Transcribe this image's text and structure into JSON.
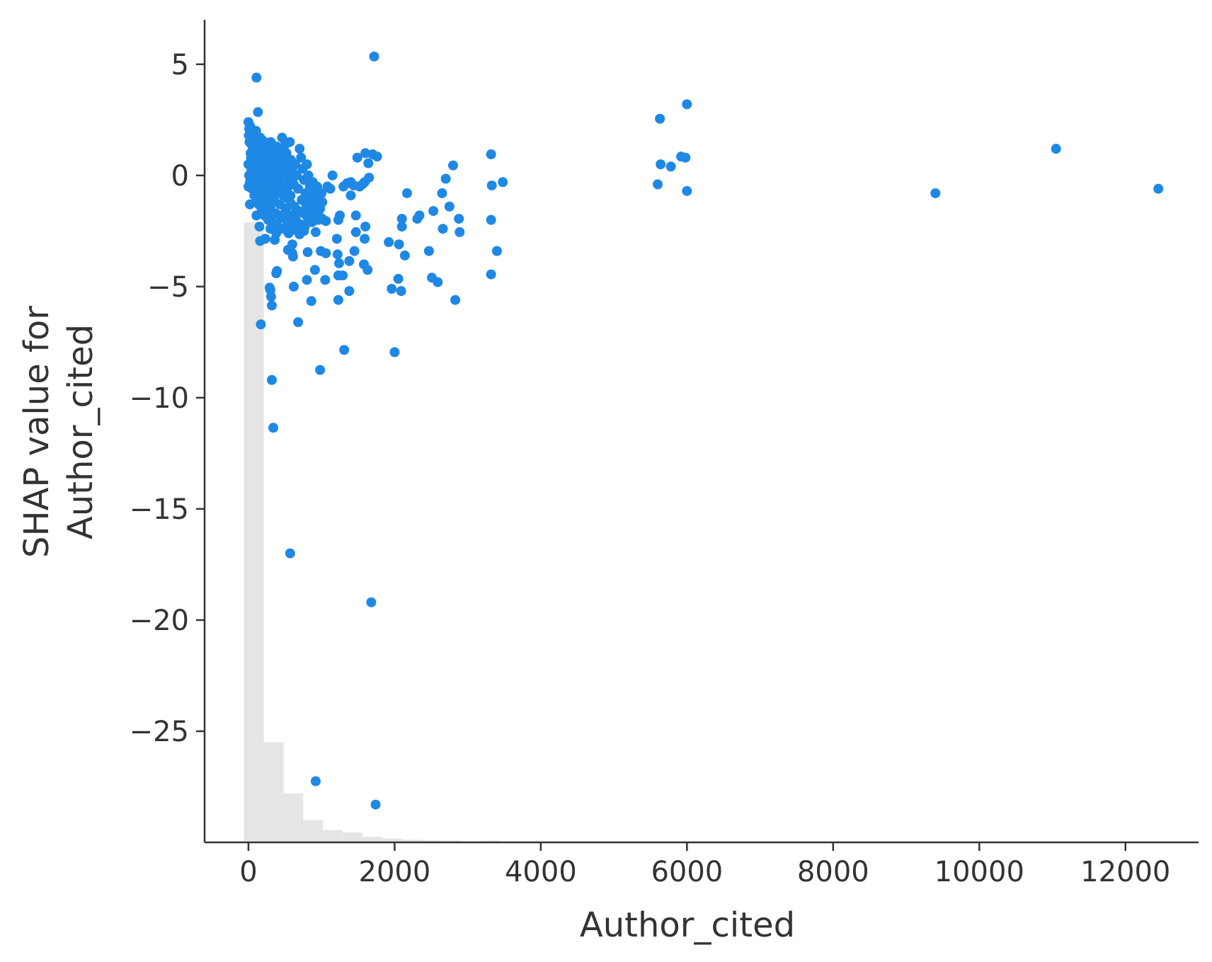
{
  "chart_data": {
    "type": "scatter",
    "xlabel": "Author_cited",
    "ylabel_lines": [
      "SHAP value for",
      "Author_cited"
    ],
    "xlim": [
      -600,
      13000
    ],
    "ylim": [
      -30,
      7
    ],
    "xticks": [
      0,
      2000,
      4000,
      6000,
      8000,
      10000,
      12000
    ],
    "xtick_labels": [
      "0",
      "2000",
      "4000",
      "6000",
      "8000",
      "10000",
      "12000"
    ],
    "yticks": [
      5,
      0,
      -5,
      -10,
      -15,
      -20,
      -25
    ],
    "ytick_labels": [
      "5",
      "0",
      "−5",
      "−10",
      "−15",
      "−20",
      "−25"
    ],
    "grid": false,
    "colors": {
      "points": "#1e88e5",
      "histogram": "#e5e5e5",
      "axes": "#333333"
    },
    "histogram": {
      "bin_width": 270,
      "bins": [
        {
          "x0": -60,
          "y_top": -2.1
        },
        {
          "x0": 210,
          "y_top": -25.5
        },
        {
          "x0": 480,
          "y_top": -27.8
        },
        {
          "x0": 750,
          "y_top": -29.0
        },
        {
          "x0": 1020,
          "y_top": -29.45
        },
        {
          "x0": 1290,
          "y_top": -29.55
        },
        {
          "x0": 1560,
          "y_top": -29.75
        },
        {
          "x0": 1830,
          "y_top": -29.82
        },
        {
          "x0": 2100,
          "y_top": -29.88
        },
        {
          "x0": 2370,
          "y_top": -29.9
        },
        {
          "x0": 2640,
          "y_top": -29.92
        },
        {
          "x0": 3180,
          "y_top": -29.92
        }
      ]
    },
    "points": [
      [
        1720,
        5.35
      ],
      [
        110,
        4.4
      ],
      [
        6000,
        3.2
      ],
      [
        130,
        2.85
      ],
      [
        5630,
        2.55
      ],
      [
        11050,
        1.2
      ],
      [
        5980,
        0.8
      ],
      [
        5920,
        0.85
      ],
      [
        5780,
        0.4
      ],
      [
        5640,
        0.5
      ],
      [
        5600,
        -0.4
      ],
      [
        6000,
        -0.7
      ],
      [
        9400,
        -0.8
      ],
      [
        12450,
        -0.6
      ],
      [
        3320,
        0.95
      ],
      [
        3330,
        -0.45
      ],
      [
        3480,
        -0.3
      ],
      [
        3320,
        -2.0
      ],
      [
        3400,
        -3.4
      ],
      [
        3320,
        -4.45
      ],
      [
        2800,
        0.45
      ],
      [
        2700,
        -0.15
      ],
      [
        2650,
        -0.8
      ],
      [
        2750,
        -1.4
      ],
      [
        2880,
        -1.95
      ],
      [
        2890,
        -2.55
      ],
      [
        2660,
        -2.4
      ],
      [
        2470,
        -3.4
      ],
      [
        2510,
        -4.6
      ],
      [
        2590,
        -4.8
      ],
      [
        2830,
        -5.6
      ],
      [
        2170,
        -0.8
      ],
      [
        2100,
        -1.95
      ],
      [
        2100,
        -2.3
      ],
      [
        2340,
        -1.8
      ],
      [
        2310,
        -1.95
      ],
      [
        2530,
        -1.6
      ],
      [
        2060,
        -3.1
      ],
      [
        2140,
        -3.6
      ],
      [
        2050,
        -4.65
      ],
      [
        2090,
        -5.2
      ],
      [
        1920,
        -3.0
      ],
      [
        1960,
        -5.1
      ],
      [
        2000,
        -7.95
      ],
      [
        1600,
        1.0
      ],
      [
        1700,
        0.95
      ],
      [
        1760,
        0.85
      ],
      [
        1640,
        0.55
      ],
      [
        1650,
        -0.1
      ],
      [
        1590,
        -0.3
      ],
      [
        1490,
        0.8
      ],
      [
        1520,
        -0.5
      ],
      [
        1560,
        -0.4
      ],
      [
        1600,
        -2.3
      ],
      [
        1590,
        -2.85
      ],
      [
        1470,
        -2.55
      ],
      [
        1470,
        -1.8
      ],
      [
        1580,
        -4.0
      ],
      [
        1630,
        -4.25
      ],
      [
        1450,
        -3.4
      ],
      [
        1380,
        -3.85
      ],
      [
        1380,
        -5.2
      ],
      [
        1310,
        -7.85
      ],
      [
        1680,
        -19.2
      ],
      [
        1740,
        -28.3
      ],
      [
        920,
        -27.25
      ],
      [
        1250,
        -1.8
      ],
      [
        1230,
        -2.0
      ],
      [
        1210,
        -2.85
      ],
      [
        1220,
        -3.55
      ],
      [
        1240,
        -3.95
      ],
      [
        1230,
        -4.5
      ],
      [
        1290,
        -4.5
      ],
      [
        1230,
        -5.6
      ],
      [
        1050,
        -4.7
      ],
      [
        990,
        -3.4
      ],
      [
        1060,
        -3.5
      ],
      [
        1060,
        -2.05
      ],
      [
        920,
        -2.55
      ],
      [
        910,
        -4.25
      ],
      [
        980,
        -8.75
      ],
      [
        860,
        -5.65
      ],
      [
        800,
        -4.7
      ],
      [
        810,
        -3.45
      ],
      [
        1120,
        -0.6
      ],
      [
        1150,
        0.0
      ],
      [
        1080,
        -0.5
      ],
      [
        1300,
        -0.5
      ],
      [
        1350,
        -0.35
      ],
      [
        1400,
        -0.3
      ],
      [
        1440,
        -0.45
      ],
      [
        1400,
        -0.9
      ],
      [
        540,
        -3.35
      ],
      [
        600,
        -3.5
      ],
      [
        600,
        -3.1
      ],
      [
        610,
        -3.65
      ],
      [
        620,
        -5.0
      ],
      [
        680,
        -6.6
      ],
      [
        390,
        -4.3
      ],
      [
        380,
        -4.4
      ],
      [
        290,
        -5.05
      ],
      [
        300,
        -5.15
      ],
      [
        310,
        -5.45
      ],
      [
        320,
        -5.85
      ],
      [
        170,
        -6.7
      ],
      [
        320,
        -9.2
      ],
      [
        340,
        -11.35
      ],
      [
        570,
        -17.0
      ],
      [
        20,
        -1.3
      ],
      [
        110,
        -1.8
      ],
      [
        150,
        -2.3
      ],
      [
        160,
        -2.95
      ],
      [
        230,
        -2.85
      ],
      [
        360,
        -2.9
      ],
      [
        300,
        -2.4
      ],
      [
        380,
        -2.6
      ],
      [
        430,
        -1.8
      ],
      [
        500,
        -1.9
      ],
      [
        590,
        -2.25
      ],
      [
        700,
        -2.65
      ],
      [
        760,
        -2.5
      ],
      [
        820,
        -2.1
      ],
      [
        880,
        -1.85
      ],
      [
        950,
        -1.3
      ],
      [
        1000,
        -0.8
      ]
    ],
    "dense_cluster": [
      [
        0,
        2.4
      ],
      [
        10,
        2.1
      ],
      [
        20,
        1.9
      ],
      [
        30,
        1.6
      ],
      [
        40,
        1.4
      ],
      [
        60,
        1.2
      ],
      [
        80,
        1.8
      ],
      [
        100,
        1.5
      ],
      [
        120,
        1.1
      ],
      [
        140,
        0.9
      ],
      [
        160,
        1.7
      ],
      [
        180,
        1.3
      ],
      [
        200,
        0.8
      ],
      [
        220,
        1.5
      ],
      [
        240,
        1.0
      ],
      [
        260,
        0.6
      ],
      [
        280,
        1.3
      ],
      [
        300,
        0.9
      ],
      [
        320,
        0.4
      ],
      [
        340,
        1.1
      ],
      [
        360,
        0.7
      ],
      [
        380,
        0.2
      ],
      [
        400,
        0.9
      ],
      [
        420,
        0.5
      ],
      [
        440,
        0.0
      ],
      [
        460,
        1.7
      ],
      [
        480,
        1.2
      ],
      [
        500,
        0.6
      ],
      [
        520,
        1.0
      ],
      [
        540,
        0.4
      ],
      [
        560,
        -0.2
      ],
      [
        580,
        0.7
      ],
      [
        600,
        0.2
      ],
      [
        620,
        -0.4
      ],
      [
        640,
        0.5
      ],
      [
        660,
        0.0
      ],
      [
        680,
        -0.6
      ],
      [
        700,
        1.2
      ],
      [
        720,
        0.8
      ],
      [
        740,
        0.3
      ],
      [
        760,
        -0.2
      ],
      [
        780,
        -0.8
      ],
      [
        800,
        0.5
      ],
      [
        820,
        0.0
      ],
      [
        840,
        -0.5
      ],
      [
        860,
        -1.0
      ],
      [
        880,
        -0.3
      ],
      [
        900,
        -0.7
      ],
      [
        920,
        -1.2
      ],
      [
        940,
        -0.5
      ],
      [
        960,
        -1.0
      ],
      [
        980,
        -1.5
      ],
      [
        0,
        0.5
      ],
      [
        0,
        -0.5
      ],
      [
        10,
        0.0
      ],
      [
        20,
        -0.3
      ],
      [
        30,
        1.0
      ],
      [
        40,
        0.2
      ],
      [
        50,
        -0.6
      ],
      [
        60,
        0.6
      ],
      [
        70,
        -0.2
      ],
      [
        80,
        -0.9
      ],
      [
        90,
        0.3
      ],
      [
        100,
        -0.5
      ],
      [
        110,
        -1.0
      ],
      [
        120,
        0.0
      ],
      [
        130,
        -0.7
      ],
      [
        140,
        -1.3
      ],
      [
        150,
        0.4
      ],
      [
        160,
        -0.3
      ],
      [
        170,
        -0.9
      ],
      [
        180,
        -1.5
      ],
      [
        190,
        0.1
      ],
      [
        200,
        -0.6
      ],
      [
        210,
        -1.2
      ],
      [
        220,
        -1.8
      ],
      [
        230,
        0.3
      ],
      [
        240,
        -0.4
      ],
      [
        250,
        -1.0
      ],
      [
        260,
        -1.6
      ],
      [
        270,
        -2.0
      ],
      [
        280,
        -0.2
      ],
      [
        290,
        -0.8
      ],
      [
        300,
        -1.4
      ],
      [
        310,
        -2.0
      ],
      [
        330,
        -0.5
      ],
      [
        350,
        -1.1
      ],
      [
        370,
        -1.7
      ],
      [
        390,
        -2.2
      ],
      [
        410,
        -0.8
      ],
      [
        430,
        -1.3
      ],
      [
        450,
        -1.9
      ],
      [
        470,
        -2.4
      ],
      [
        490,
        -1.0
      ],
      [
        510,
        -1.5
      ],
      [
        530,
        -2.1
      ],
      [
        550,
        -2.6
      ],
      [
        570,
        -1.2
      ],
      [
        590,
        -1.8
      ],
      [
        610,
        -2.3
      ],
      [
        630,
        -1.4
      ],
      [
        650,
        -2.0
      ],
      [
        670,
        -2.5
      ],
      [
        690,
        -1.6
      ],
      [
        710,
        -2.2
      ],
      [
        730,
        -1.1
      ],
      [
        750,
        -1.7
      ],
      [
        770,
        -2.3
      ],
      [
        790,
        -1.3
      ],
      [
        810,
        -1.9
      ],
      [
        830,
        -0.9
      ],
      [
        850,
        -1.5
      ],
      [
        870,
        -2.1
      ],
      [
        890,
        -1.1
      ],
      [
        910,
        -1.7
      ],
      [
        930,
        -0.6
      ],
      [
        950,
        -2.0
      ],
      [
        970,
        -0.9
      ],
      [
        990,
        -1.9
      ],
      [
        1010,
        -1.2
      ],
      [
        1030,
        -2.0
      ],
      [
        5,
        1.8
      ],
      [
        15,
        1.5
      ],
      [
        25,
        2.2
      ],
      [
        35,
        0.8
      ],
      [
        45,
        1.9
      ],
      [
        55,
        1.0
      ],
      [
        65,
        1.6
      ],
      [
        75,
        0.4
      ],
      [
        85,
        1.2
      ],
      [
        95,
        0.9
      ],
      [
        105,
        2.0
      ],
      [
        115,
        0.6
      ],
      [
        125,
        1.4
      ],
      [
        135,
        0.2
      ],
      [
        145,
        1.0
      ],
      [
        155,
        -0.1
      ],
      [
        165,
        0.8
      ],
      [
        175,
        0.3
      ],
      [
        185,
        1.6
      ],
      [
        195,
        0.5
      ],
      [
        205,
        1.2
      ],
      [
        215,
        0.1
      ],
      [
        225,
        0.9
      ],
      [
        235,
        -0.2
      ],
      [
        245,
        0.6
      ],
      [
        255,
        1.4
      ],
      [
        265,
        0.3
      ],
      [
        275,
        1.0
      ],
      [
        285,
        -0.1
      ],
      [
        295,
        0.7
      ],
      [
        305,
        1.5
      ],
      [
        315,
        0.2
      ],
      [
        325,
        0.8
      ],
      [
        335,
        -0.3
      ],
      [
        345,
        0.5
      ],
      [
        355,
        1.2
      ],
      [
        365,
        0.0
      ],
      [
        375,
        0.6
      ],
      [
        385,
        1.3
      ],
      [
        395,
        -0.4
      ],
      [
        405,
        0.3
      ],
      [
        415,
        1.0
      ],
      [
        425,
        -0.2
      ],
      [
        435,
        0.5
      ],
      [
        445,
        1.1
      ],
      [
        455,
        -0.6
      ],
      [
        465,
        0.2
      ],
      [
        475,
        0.8
      ],
      [
        485,
        -0.4
      ],
      [
        495,
        0.3
      ],
      [
        505,
        1.4
      ],
      [
        515,
        -0.8
      ],
      [
        525,
        0.1
      ],
      [
        535,
        0.7
      ],
      [
        545,
        -0.5
      ],
      [
        555,
        0.2
      ],
      [
        565,
        1.5
      ],
      [
        575,
        -0.9
      ],
      [
        585,
        0.0
      ],
      [
        595,
        0.6
      ]
    ]
  }
}
